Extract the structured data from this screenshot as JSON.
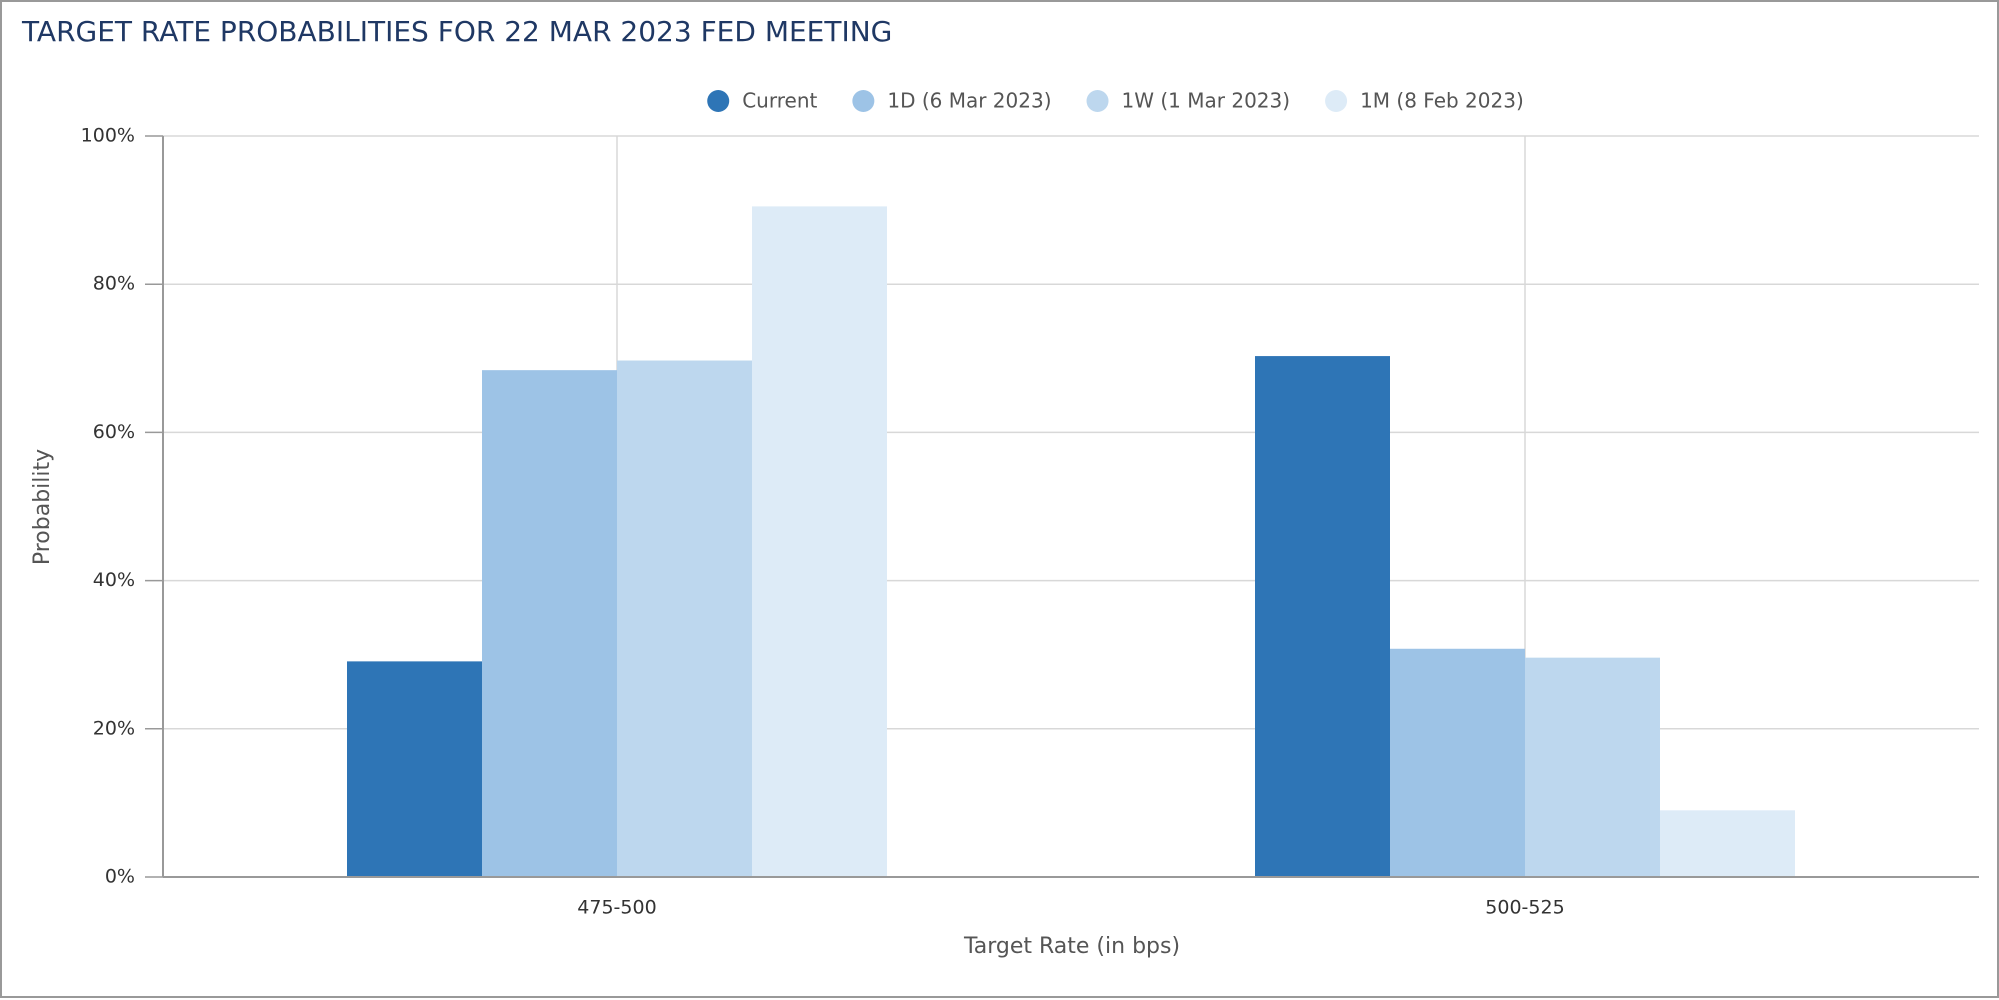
{
  "chart_data": {
    "type": "bar",
    "title": "TARGET RATE PROBABILITIES FOR 22 MAR 2023 FED MEETING",
    "x_label": "Target Rate (in bps)",
    "y_label": "Probability",
    "categories": [
      "475-500",
      "500-525"
    ],
    "series": [
      {
        "name": "Current",
        "color": "#2e75b6",
        "values": [
          29.1,
          70.3
        ]
      },
      {
        "name": "1D (6 Mar 2023)",
        "color": "#9dc3e6",
        "values": [
          68.4,
          30.8
        ]
      },
      {
        "name": "1W (1 Mar 2023)",
        "color": "#bdd7ee",
        "values": [
          69.7,
          29.6
        ]
      },
      {
        "name": "1M (8 Feb 2023)",
        "color": "#ddebf7",
        "values": [
          90.5,
          9.0
        ]
      }
    ],
    "ylim": [
      0,
      100
    ],
    "yticks": [
      {
        "value": 0,
        "label": "0%"
      },
      {
        "value": 20,
        "label": "20%"
      },
      {
        "value": 40,
        "label": "40%"
      },
      {
        "value": 60,
        "label": "60%"
      },
      {
        "value": 80,
        "label": "80%"
      },
      {
        "value": 100,
        "label": "100%"
      }
    ],
    "grid": true,
    "legend": "top"
  }
}
